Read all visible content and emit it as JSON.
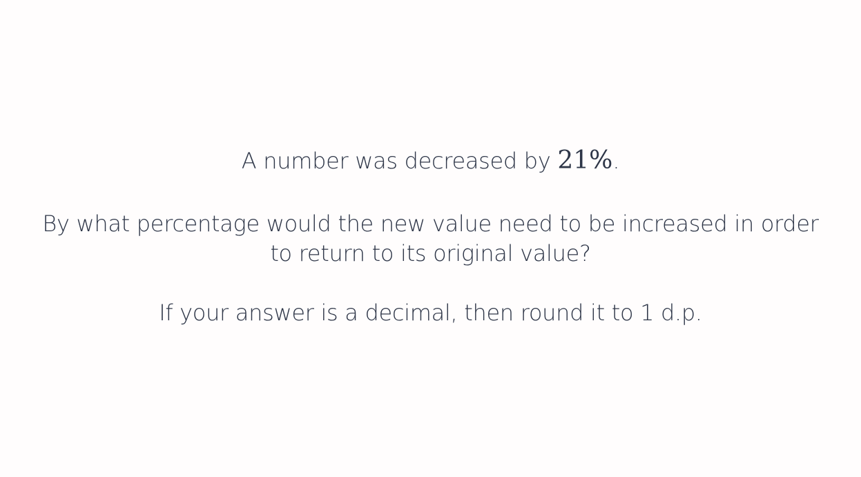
{
  "question": {
    "line1_prefix": "A number was decreased by ",
    "line1_math": "21%",
    "line1_suffix": ".",
    "line2": "By what percentage would the new value need to be increased in order",
    "line3": "to return to its original value?",
    "line4": "If your answer is a decimal, then round it to 1 d.p."
  }
}
